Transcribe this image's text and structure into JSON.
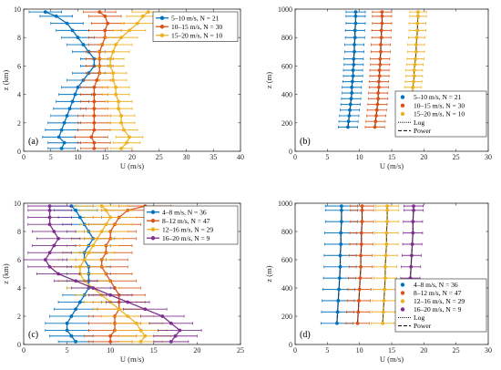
{
  "chart_data": [
    {
      "type": "line",
      "panel_label": "(a)",
      "xlabel": "U (m/s)",
      "ylabel": "z (km)",
      "xlim": [
        0,
        40
      ],
      "ylim": [
        0,
        10
      ],
      "xticks": [
        0,
        5,
        10,
        15,
        20,
        25,
        30,
        35,
        40
      ],
      "yticks": [
        0,
        2,
        4,
        6,
        8,
        10
      ],
      "legend_position": "top-right",
      "error_bars": "horizontal",
      "series": [
        {
          "name": "5–10 m/s, N = 21",
          "color": "#0072BD",
          "marker": "circle",
          "y": [
            0.2,
            0.6,
            1.0,
            1.5,
            2.0,
            2.5,
            3.0,
            3.5,
            4.0,
            4.5,
            5.0,
            5.5,
            6.0,
            6.5,
            7.0,
            7.5,
            8.0,
            8.5,
            9.0,
            9.5,
            9.8
          ],
          "x": [
            7,
            7.5,
            6.5,
            7,
            7.5,
            8,
            8.5,
            9,
            9.5,
            10,
            11,
            12,
            13,
            13,
            12,
            11,
            10,
            9,
            8,
            6,
            4
          ],
          "err": [
            2.5,
            3,
            3,
            3,
            3,
            3,
            3,
            3,
            3,
            3,
            3,
            3,
            2.5,
            2.5,
            3,
            3,
            3,
            3,
            3,
            3,
            3
          ]
        },
        {
          "name": "10–15 m/s, N = 30",
          "color": "#D95319",
          "marker": "circle",
          "y": [
            0.2,
            0.6,
            1.0,
            1.5,
            2.0,
            2.5,
            3.0,
            3.5,
            4.0,
            4.5,
            5.0,
            5.5,
            6.0,
            6.5,
            7.0,
            7.5,
            8.0,
            8.5,
            9.0,
            9.5,
            9.8
          ],
          "x": [
            13,
            13,
            12.5,
            13,
            13,
            13,
            13,
            13,
            13,
            13,
            13.5,
            14,
            14,
            14,
            14,
            14.5,
            15,
            15,
            15.5,
            15,
            14
          ],
          "err": [
            2.5,
            3,
            3,
            3,
            3,
            3,
            2.5,
            2.5,
            2.5,
            2.5,
            2.5,
            2.5,
            2.5,
            2.5,
            2.5,
            2.5,
            3,
            3,
            3,
            3,
            3
          ]
        },
        {
          "name": "15–20 m/s, N = 10",
          "color": "#EDB120",
          "marker": "circle",
          "y": [
            0.2,
            0.6,
            1.0,
            1.5,
            2.0,
            2.5,
            3.0,
            3.5,
            4.0,
            4.5,
            5.0,
            5.5,
            6.0,
            6.5,
            7.0,
            7.5,
            8.0,
            8.5,
            9.0,
            9.5,
            9.8
          ],
          "x": [
            18,
            19,
            19.5,
            18.5,
            18,
            18,
            17.5,
            17.5,
            17,
            17,
            16.5,
            16.5,
            16,
            16,
            16.5,
            17,
            18,
            19.5,
            21,
            22,
            23
          ],
          "err": [
            2,
            2.5,
            2.5,
            2.5,
            2.5,
            2.5,
            2.5,
            2.5,
            2.5,
            2.5,
            2.5,
            2.5,
            2.5,
            2.5,
            3,
            3,
            3,
            3,
            3,
            3,
            3
          ]
        }
      ]
    },
    {
      "type": "line",
      "panel_label": "(b)",
      "xlabel": "U (m/s)",
      "ylabel": "z (m)",
      "xlim": [
        0,
        30
      ],
      "ylim": [
        0,
        1000
      ],
      "xticks": [
        0,
        5,
        10,
        15,
        20,
        25,
        30
      ],
      "yticks": [
        0,
        200,
        400,
        600,
        800,
        1000
      ],
      "legend_position": "bottom-right",
      "error_bars": "horizontal",
      "legend_lines": [
        "Log",
        "Power"
      ],
      "series": [
        {
          "name": "5–10 m/s, N = 21",
          "color": "#0072BD",
          "marker": "circle",
          "y": [
            170,
            210,
            250,
            290,
            330,
            370,
            410,
            450,
            490,
            530,
            570,
            610,
            650,
            700,
            750,
            800,
            850,
            900,
            950,
            980
          ],
          "x": [
            8.2,
            8.3,
            8.4,
            8.5,
            8.6,
            8.7,
            8.8,
            8.8,
            8.9,
            9.0,
            9.0,
            9.1,
            9.1,
            9.2,
            9.2,
            9.3,
            9.3,
            9.4,
            9.4,
            9.4
          ],
          "err": [
            1.5,
            1.5,
            1.5,
            1.5,
            1.5,
            1.5,
            1.5,
            1.5,
            1.5,
            1.5,
            1.5,
            1.5,
            1.5,
            1.5,
            1.5,
            1.5,
            1.5,
            1.5,
            1.5,
            1.5
          ]
        },
        {
          "name": "10–15 m/s, N = 30",
          "color": "#D95319",
          "marker": "circle",
          "y": [
            170,
            210,
            250,
            290,
            330,
            370,
            410,
            450,
            490,
            530,
            570,
            610,
            650,
            700,
            750,
            800,
            850,
            900,
            950,
            980
          ],
          "x": [
            12.4,
            12.5,
            12.6,
            12.7,
            12.8,
            12.9,
            12.9,
            13.0,
            13.0,
            13.1,
            13.1,
            13.2,
            13.2,
            13.3,
            13.3,
            13.4,
            13.4,
            13.5,
            13.5,
            13.5
          ],
          "err": [
            1.5,
            1.5,
            1.5,
            1.5,
            1.5,
            1.5,
            1.5,
            1.5,
            1.5,
            1.5,
            1.5,
            1.5,
            1.5,
            1.5,
            1.5,
            1.5,
            1.5,
            1.5,
            1.5,
            1.5
          ]
        },
        {
          "name": "15–20 m/s, N = 10",
          "color": "#EDB120",
          "marker": "circle",
          "y": [
            170,
            210,
            250,
            290,
            330,
            370,
            410,
            450,
            490,
            530,
            570,
            610,
            650,
            700,
            750,
            800,
            850,
            900,
            950,
            980
          ],
          "x": [
            17.6,
            17.7,
            17.8,
            17.9,
            18.0,
            18.1,
            18.2,
            18.3,
            18.4,
            18.5,
            18.5,
            18.6,
            18.7,
            18.8,
            18.8,
            18.9,
            19.0,
            19.0,
            19.1,
            19.1
          ],
          "err": [
            1.3,
            1.3,
            1.3,
            1.3,
            1.3,
            1.3,
            1.3,
            1.3,
            1.3,
            1.3,
            1.3,
            1.3,
            1.3,
            1.3,
            1.3,
            1.3,
            1.3,
            1.3,
            1.3,
            1.3
          ]
        }
      ]
    },
    {
      "type": "line",
      "panel_label": "(c)",
      "xlabel": "U (m/s)",
      "ylabel": "z (km)",
      "xlim": [
        0,
        25
      ],
      "ylim": [
        0,
        10
      ],
      "xticks": [
        0,
        5,
        10,
        15,
        20,
        25
      ],
      "yticks": [
        0,
        2,
        4,
        6,
        8,
        10
      ],
      "legend_position": "top-right",
      "error_bars": "horizontal",
      "series": [
        {
          "name": "4–8 m/s, N = 36",
          "color": "#0072BD",
          "marker": "circle",
          "y": [
            0.2,
            0.6,
            1.0,
            1.5,
            2.0,
            2.5,
            3.0,
            3.5,
            4.0,
            4.5,
            5.0,
            5.5,
            6.0,
            6.5,
            7.0,
            7.5,
            8.0,
            8.5,
            9.0,
            9.5,
            9.8
          ],
          "x": [
            6,
            5.5,
            5,
            5,
            5.5,
            6,
            6.5,
            7,
            7.5,
            7.5,
            7.5,
            7.5,
            7,
            7,
            7.5,
            8,
            7.5,
            7,
            6.5,
            6,
            5.5
          ],
          "err": [
            2,
            2.5,
            2.5,
            2.5,
            2.5,
            2.5,
            2.5,
            2.5,
            2.5,
            2.5,
            2.5,
            2.5,
            2.5,
            2.5,
            2.5,
            2.5,
            2.5,
            2.5,
            2.5,
            2.5,
            2.5
          ]
        },
        {
          "name": "8–12 m/s, N = 47",
          "color": "#D95319",
          "marker": "circle",
          "y": [
            0.2,
            0.6,
            1.0,
            1.5,
            2.0,
            2.5,
            3.0,
            3.5,
            4.0,
            4.5,
            5.0,
            5.5,
            6.0,
            6.5,
            7.0,
            7.5,
            8.0,
            8.5,
            9.0,
            9.5,
            9.8
          ],
          "x": [
            10,
            10,
            10.5,
            10.5,
            10.5,
            11,
            11,
            11,
            10.5,
            10,
            9.5,
            9,
            9,
            9.5,
            9.5,
            10,
            10,
            10.5,
            11,
            12,
            14
          ],
          "err": [
            2.5,
            3,
            3,
            3,
            3,
            3,
            3,
            3,
            3,
            3,
            3,
            3,
            3,
            3,
            3,
            3,
            3,
            3,
            3,
            3,
            3
          ]
        },
        {
          "name": "12–16 m/s, N = 29",
          "color": "#EDB120",
          "marker": "circle",
          "y": [
            0.2,
            0.6,
            1.0,
            1.5,
            2.0,
            2.5,
            3.0,
            3.5,
            4.0,
            4.5,
            5.0,
            5.5,
            6.0,
            6.5,
            7.0,
            7.5,
            8.0,
            8.5,
            9.0,
            9.5,
            9.8
          ],
          "x": [
            13.5,
            14,
            13.5,
            13,
            12,
            11,
            10,
            9,
            8,
            7,
            6.5,
            6.5,
            7,
            7.5,
            8,
            8.5,
            9,
            9.5,
            10,
            9.5,
            9
          ],
          "err": [
            2.5,
            3,
            3,
            3,
            3,
            3,
            3,
            3,
            3,
            3,
            3,
            3,
            3,
            3,
            3,
            3,
            3,
            3,
            3,
            3,
            3
          ]
        },
        {
          "name": "16–20 m/s, N = 9",
          "color": "#7E2F8E",
          "marker": "circle",
          "y": [
            0.2,
            0.6,
            1.0,
            1.5,
            2.0,
            2.5,
            3.0,
            3.5,
            4.0,
            4.5,
            5.0,
            5.5,
            6.0,
            6.5,
            7.0,
            7.5,
            8.0,
            8.5,
            9.0,
            9.5,
            9.8
          ],
          "x": [
            17,
            17.5,
            18,
            17,
            16,
            14,
            12,
            10,
            8,
            6,
            4,
            3,
            2.5,
            3,
            3.5,
            4,
            3.5,
            3,
            3,
            3,
            3
          ],
          "err": [
            2,
            2.5,
            2.5,
            2.5,
            2.5,
            2.5,
            2.5,
            2.5,
            2.5,
            2.5,
            2.5,
            2.5,
            2.5,
            2.5,
            2.5,
            2.5,
            2.5,
            2.5,
            2.5,
            2.5,
            2.5
          ]
        }
      ]
    },
    {
      "type": "line",
      "panel_label": "(d)",
      "xlabel": "U (m/s)",
      "ylabel": "z (m)",
      "xlim": [
        0,
        30
      ],
      "ylim": [
        0,
        1000
      ],
      "xticks": [
        0,
        5,
        10,
        15,
        20,
        25,
        30
      ],
      "yticks": [
        0,
        200,
        400,
        600,
        800,
        1000
      ],
      "legend_position": "bottom-right",
      "error_bars": "horizontal",
      "legend_lines": [
        "Log",
        "Power"
      ],
      "series": [
        {
          "name": "4–8 m/s, N = 36",
          "color": "#0072BD",
          "marker": "circle",
          "y": [
            150,
            230,
            310,
            390,
            470,
            550,
            630,
            710,
            790,
            870,
            950,
            980
          ],
          "x": [
            6.5,
            6.6,
            6.7,
            6.8,
            6.9,
            7.0,
            7.0,
            7.1,
            7.1,
            7.2,
            7.2,
            7.2
          ],
          "err": [
            2.5,
            2.5,
            2.5,
            2.5,
            2.5,
            2.5,
            2.5,
            2.5,
            2.5,
            2.5,
            2.5,
            2.5
          ]
        },
        {
          "name": "8–12 m/s, N = 47",
          "color": "#D95319",
          "marker": "circle",
          "y": [
            150,
            230,
            310,
            390,
            470,
            550,
            630,
            710,
            790,
            870,
            950,
            980
          ],
          "x": [
            9.7,
            9.8,
            9.9,
            10.0,
            10.1,
            10.2,
            10.2,
            10.3,
            10.3,
            10.4,
            10.4,
            10.4
          ],
          "err": [
            1.8,
            1.8,
            1.8,
            1.8,
            1.8,
            1.8,
            1.8,
            1.8,
            1.8,
            1.8,
            1.8,
            1.8
          ]
        },
        {
          "name": "12–16 m/s, N = 29",
          "color": "#EDB120",
          "marker": "circle",
          "y": [
            150,
            230,
            310,
            390,
            470,
            550,
            630,
            710,
            790,
            870,
            950,
            980
          ],
          "x": [
            13.6,
            13.7,
            13.8,
            13.9,
            14.0,
            14.0,
            14.1,
            14.2,
            14.2,
            14.3,
            14.3,
            14.3
          ],
          "err": [
            1.8,
            1.8,
            1.8,
            1.8,
            1.8,
            1.8,
            1.8,
            1.8,
            1.8,
            1.8,
            1.8,
            1.8
          ]
        },
        {
          "name": "16–20 m/s, N = 9",
          "color": "#7E2F8E",
          "marker": "circle",
          "y": [
            150,
            230,
            310,
            390,
            470,
            550,
            630,
            710,
            790,
            870,
            950,
            980
          ],
          "x": [
            17.2,
            17.4,
            17.6,
            17.8,
            17.9,
            18.0,
            18.1,
            18.2,
            18.3,
            18.3,
            18.4,
            18.4
          ],
          "err": [
            1.5,
            1.5,
            1.5,
            1.5,
            1.5,
            1.5,
            1.5,
            1.5,
            1.5,
            1.5,
            1.5,
            1.5
          ]
        }
      ]
    }
  ]
}
